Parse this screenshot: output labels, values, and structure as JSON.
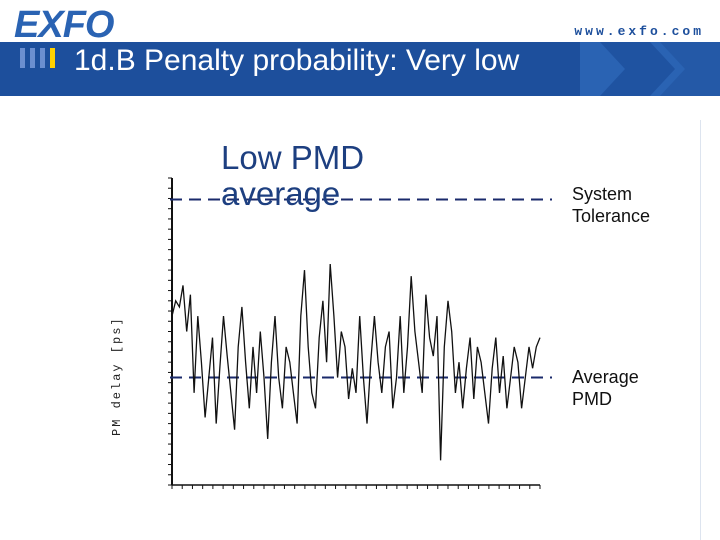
{
  "header": {
    "logo_text": "EXFO",
    "url_text": "www.exfo.com",
    "title": "1d.B Penalty probability: Very low",
    "brand_color": "#1d4f9c",
    "accent_color": "#2a63b3",
    "bar_colors": [
      "#6b8fd0",
      "#6b8fd0",
      "#6b8fd0",
      "#ffd200"
    ]
  },
  "annotations": {
    "low_pmd_line1": "Low PMD",
    "low_pmd_line2": "average",
    "system_line1": "System",
    "system_line2": "Tolerance",
    "average_line1": "Average",
    "average_line2": "PMD"
  },
  "chart_data": {
    "type": "line",
    "title": "",
    "xlabel": "",
    "ylabel": "PM delay [ps]",
    "grid": false,
    "ylim": [
      0,
      100
    ],
    "xlim": [
      0,
      100
    ],
    "reference_lines": [
      {
        "name": "System Tolerance",
        "y": 93,
        "style": "dashed",
        "color": "#1a2a6b"
      },
      {
        "name": "Average PMD",
        "y": 35,
        "style": "dashed",
        "color": "#1a2a6b"
      }
    ],
    "series": [
      {
        "values": [
          [
            0,
            55
          ],
          [
            1,
            60
          ],
          [
            2,
            58
          ],
          [
            3,
            65
          ],
          [
            4,
            50
          ],
          [
            5,
            62
          ],
          [
            6,
            30
          ],
          [
            7,
            55
          ],
          [
            8,
            40
          ],
          [
            9,
            22
          ],
          [
            10,
            35
          ],
          [
            11,
            48
          ],
          [
            12,
            20
          ],
          [
            13,
            38
          ],
          [
            14,
            55
          ],
          [
            15,
            42
          ],
          [
            16,
            30
          ],
          [
            17,
            18
          ],
          [
            18,
            45
          ],
          [
            19,
            58
          ],
          [
            20,
            40
          ],
          [
            21,
            25
          ],
          [
            22,
            45
          ],
          [
            23,
            30
          ],
          [
            24,
            50
          ],
          [
            25,
            35
          ],
          [
            26,
            15
          ],
          [
            27,
            40
          ],
          [
            28,
            55
          ],
          [
            29,
            35
          ],
          [
            30,
            25
          ],
          [
            31,
            45
          ],
          [
            32,
            40
          ],
          [
            33,
            30
          ],
          [
            34,
            20
          ],
          [
            35,
            55
          ],
          [
            36,
            70
          ],
          [
            37,
            45
          ],
          [
            38,
            30
          ],
          [
            39,
            25
          ],
          [
            40,
            48
          ],
          [
            41,
            60
          ],
          [
            42,
            40
          ],
          [
            43,
            72
          ],
          [
            44,
            55
          ],
          [
            45,
            35
          ],
          [
            46,
            50
          ],
          [
            47,
            45
          ],
          [
            48,
            28
          ],
          [
            49,
            38
          ],
          [
            50,
            30
          ],
          [
            51,
            55
          ],
          [
            52,
            35
          ],
          [
            53,
            20
          ],
          [
            54,
            40
          ],
          [
            55,
            55
          ],
          [
            56,
            40
          ],
          [
            57,
            30
          ],
          [
            58,
            45
          ],
          [
            59,
            50
          ],
          [
            60,
            25
          ],
          [
            61,
            35
          ],
          [
            62,
            55
          ],
          [
            63,
            30
          ],
          [
            64,
            45
          ],
          [
            65,
            68
          ],
          [
            66,
            50
          ],
          [
            67,
            40
          ],
          [
            68,
            30
          ],
          [
            69,
            62
          ],
          [
            70,
            48
          ],
          [
            71,
            42
          ],
          [
            72,
            55
          ],
          [
            73,
            8
          ],
          [
            74,
            45
          ],
          [
            75,
            60
          ],
          [
            76,
            50
          ],
          [
            77,
            30
          ],
          [
            78,
            40
          ],
          [
            79,
            25
          ],
          [
            80,
            38
          ],
          [
            81,
            48
          ],
          [
            82,
            28
          ],
          [
            83,
            45
          ],
          [
            84,
            40
          ],
          [
            85,
            30
          ],
          [
            86,
            20
          ],
          [
            87,
            38
          ],
          [
            88,
            48
          ],
          [
            89,
            30
          ],
          [
            90,
            42
          ],
          [
            91,
            25
          ],
          [
            92,
            35
          ],
          [
            93,
            45
          ],
          [
            94,
            40
          ],
          [
            95,
            25
          ],
          [
            96,
            35
          ],
          [
            97,
            45
          ],
          [
            98,
            38
          ],
          [
            99,
            45
          ],
          [
            100,
            48
          ]
        ]
      }
    ]
  }
}
